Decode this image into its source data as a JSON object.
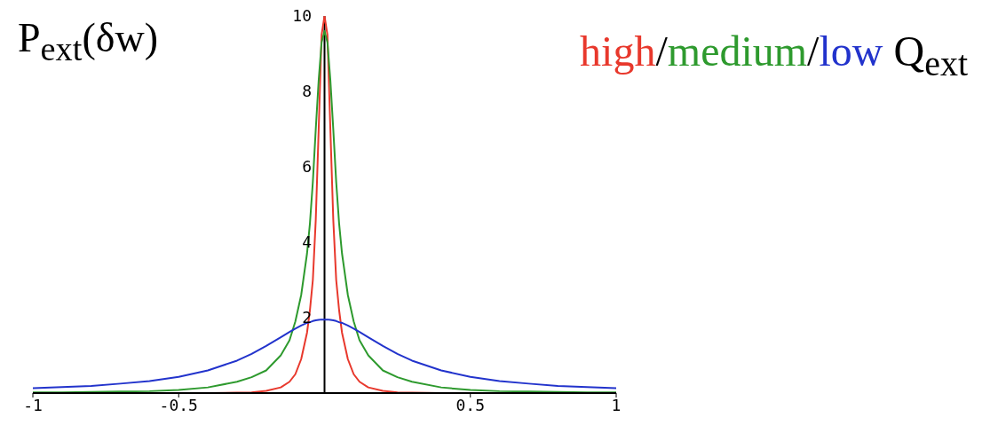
{
  "chart_data": {
    "type": "line",
    "ylabel": "P$_{ext}$(δw)",
    "legend_title": "Q$_{ext}$",
    "legend": "top right",
    "annotations": [
      "/",
      "/"
    ],
    "marker": "none",
    "line_style": "solid",
    "x": [
      -1,
      -0.9,
      -0.8,
      -0.7,
      -0.6,
      -0.5,
      -0.4,
      -0.3,
      -0.25,
      -0.2,
      -0.15,
      -0.12,
      -0.1,
      -0.08,
      -0.06,
      -0.05,
      -0.04,
      -0.03,
      -0.02,
      -0.01,
      0,
      0.01,
      0.02,
      0.03,
      0.04,
      0.05,
      0.06,
      0.08,
      0.1,
      0.12,
      0.15,
      0.2,
      0.25,
      0.3,
      0.4,
      0.5,
      0.6,
      0.7,
      0.8,
      0.9,
      1
    ],
    "series": [
      {
        "name": "high",
        "color": "#e8382c",
        "values": [
          null,
          null,
          null,
          null,
          null,
          null,
          0,
          0.01,
          0.02,
          0.06,
          0.15,
          0.3,
          0.5,
          0.9,
          1.6,
          2.2,
          3,
          4.6,
          7,
          9.5,
          10,
          9.5,
          7,
          4.6,
          3,
          2.2,
          1.6,
          0.9,
          0.5,
          0.3,
          0.15,
          0.06,
          0.02,
          0.01,
          0,
          null,
          null,
          null,
          null,
          null,
          null
        ]
      },
      {
        "name": "medium",
        "color": "#2e9a2e",
        "values": [
          0.02,
          0.02,
          0.03,
          0.04,
          0.05,
          0.08,
          0.15,
          0.3,
          0.42,
          0.6,
          1,
          1.4,
          1.9,
          2.6,
          3.7,
          4.5,
          5.6,
          7,
          8.3,
          9.3,
          9.6,
          9.3,
          8.3,
          7,
          5.6,
          4.5,
          3.7,
          2.6,
          1.9,
          1.4,
          1,
          0.6,
          0.42,
          0.3,
          0.15,
          0.08,
          0.05,
          0.04,
          0.03,
          0.02,
          0.02
        ]
      },
      {
        "name": "low",
        "color": "#2233cc",
        "values": [
          0.13,
          0.16,
          0.19,
          0.25,
          0.32,
          0.43,
          0.6,
          0.86,
          1.04,
          1.25,
          1.48,
          1.62,
          1.71,
          1.79,
          1.86,
          1.88,
          1.91,
          1.93,
          1.94,
          1.95,
          1.95,
          1.95,
          1.94,
          1.93,
          1.91,
          1.88,
          1.86,
          1.79,
          1.71,
          1.62,
          1.48,
          1.25,
          1.04,
          0.86,
          0.6,
          0.43,
          0.32,
          0.25,
          0.19,
          0.16,
          0.13
        ]
      }
    ],
    "xlim": [
      -1,
      1
    ],
    "xticks": [
      -1,
      -0.5,
      0.5,
      1
    ],
    "ylim": [
      0,
      10
    ],
    "yticks": [
      2,
      4,
      6,
      8,
      10
    ]
  }
}
